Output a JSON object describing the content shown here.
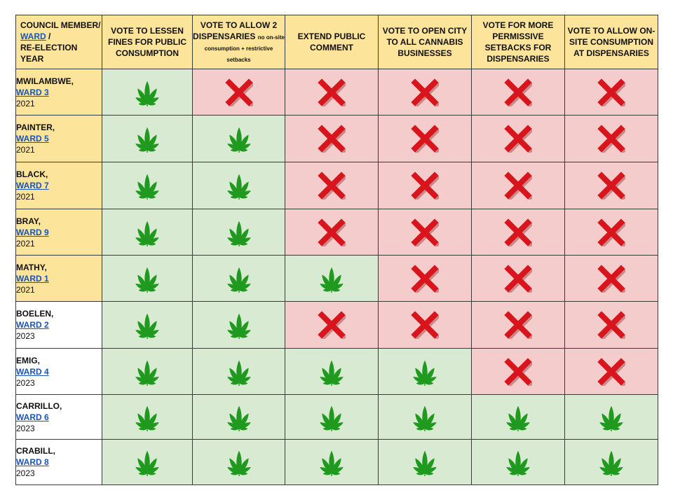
{
  "header": {
    "member_line1": "COUNCIL MEMBER/",
    "member_ward": "WARD",
    "member_slash": " /",
    "member_line3": "RE-ELECTION YEAR",
    "columns": [
      {
        "label": "VOTE TO LESSEN FINES FOR PUBLIC CONSUMPTION",
        "small": ""
      },
      {
        "label": "VOTE TO ALLOW 2 DISPENSARIES",
        "small": "no on-site consumption + restrictive setbacks"
      },
      {
        "label": "EXTEND PUBLIC COMMENT",
        "small": ""
      },
      {
        "label": "VOTE TO OPEN CITY TO ALL CANNABIS BUSINESSES",
        "small": ""
      },
      {
        "label": "VOTE FOR MORE PERMISSIVE SETBACKS FOR DISPENSARIES",
        "small": ""
      },
      {
        "label": "VOTE TO ALLOW ON-SITE CONSUMPTION AT DISPENSARIES",
        "small": ""
      }
    ]
  },
  "icons": {
    "yes": "cannabis-leaf-icon",
    "no": "red-x-icon"
  },
  "colors": {
    "header": "#fde49b",
    "yes_bg": "#d9ead3",
    "no_bg": "#f4cccc",
    "leaf": "#1f9a1f",
    "x": "#d8141c",
    "link": "#1a55b8"
  },
  "rows": [
    {
      "name": "MWILAMBWE,",
      "ward": "WARD 3",
      "year": "2021",
      "votes": [
        "yes",
        "no",
        "no",
        "no",
        "no",
        "no"
      ]
    },
    {
      "name": "PAINTER,",
      "ward": "WARD 5",
      "year": "2021",
      "votes": [
        "yes",
        "yes",
        "no",
        "no",
        "no",
        "no"
      ]
    },
    {
      "name": "BLACK,",
      "ward": "WARD 7",
      "year": "2021",
      "votes": [
        "yes",
        "yes",
        "no",
        "no",
        "no",
        "no"
      ]
    },
    {
      "name": "BRAY,",
      "ward": "WARD 9",
      "year": "2021",
      "votes": [
        "yes",
        "yes",
        "no",
        "no",
        "no",
        "no"
      ]
    },
    {
      "name": "MATHY,",
      "ward": "WARD 1",
      "year": "2021",
      "votes": [
        "yes",
        "yes",
        "yes",
        "no",
        "no",
        "no"
      ]
    },
    {
      "name": "BOELEN,",
      "ward": "WARD 2",
      "year": "2023",
      "votes": [
        "yes",
        "yes",
        "no",
        "no",
        "no",
        "no"
      ]
    },
    {
      "name": "EMIG,",
      "ward": "WARD 4",
      "year": "2023",
      "votes": [
        "yes",
        "yes",
        "yes",
        "yes",
        "no",
        "no"
      ]
    },
    {
      "name": "CARRILLO,",
      "ward": "WARD 6",
      "year": "2023",
      "votes": [
        "yes",
        "yes",
        "yes",
        "yes",
        "yes",
        "yes"
      ]
    },
    {
      "name": "CRABILL,",
      "ward": "WARD 8",
      "year": "2023",
      "votes": [
        "yes",
        "yes",
        "yes",
        "yes",
        "yes",
        "yes"
      ]
    }
  ]
}
